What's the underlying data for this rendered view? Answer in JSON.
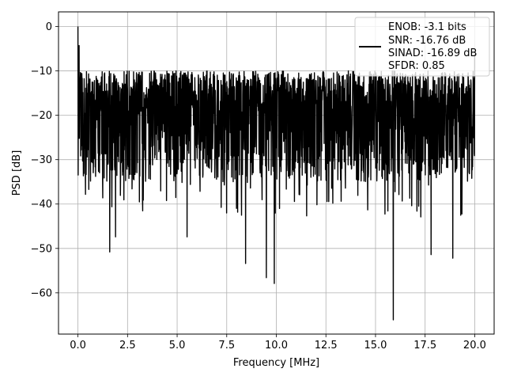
{
  "chart_data": {
    "type": "line",
    "title": "",
    "xlabel": "Frequency [MHz]",
    "ylabel": "PSD [dB]",
    "xlim": [
      -0.98,
      20.98
    ],
    "ylim": [
      -69.3,
      3.3
    ],
    "grid": true,
    "x_ticks": [
      0.0,
      2.5,
      5.0,
      7.5,
      10.0,
      12.5,
      15.0,
      17.5,
      20.0
    ],
    "x_tick_labels": [
      "0.0",
      "2.5",
      "5.0",
      "7.5",
      "10.0",
      "12.5",
      "15.0",
      "17.5",
      "20.0"
    ],
    "y_ticks": [
      0,
      -10,
      -20,
      -30,
      -40,
      -50,
      -60
    ],
    "y_tick_labels": [
      "0",
      "−10",
      "−20",
      "−30",
      "−40",
      "−50",
      "−60"
    ],
    "legend": {
      "placement": "upper-right",
      "entries": [
        "ENOB: -3.1 bits",
        "SNR: -16.76 dB",
        "SINAD: -16.89 dB",
        "SFDR: 0.85"
      ]
    },
    "series": [
      {
        "color": "#000000",
        "x_range": [
          0.0,
          20.0
        ],
        "n_points": 2048,
        "seed": 12345,
        "peaks": [
          {
            "x": 0.0,
            "y": 0.0
          },
          {
            "x": 0.06,
            "y": -4.3
          },
          {
            "x": 20.0,
            "y": -6.2
          }
        ],
        "dips": [
          {
            "x": 1.6,
            "y": -50.8
          },
          {
            "x": 1.9,
            "y": -47.4
          },
          {
            "x": 5.5,
            "y": -47.4
          },
          {
            "x": 8.45,
            "y": -53.4
          },
          {
            "x": 9.5,
            "y": -56.6
          },
          {
            "x": 9.9,
            "y": -57.9
          },
          {
            "x": 15.9,
            "y": -66.1
          },
          {
            "x": 17.8,
            "y": -51.4
          },
          {
            "x": 18.9,
            "y": -52.2
          }
        ],
        "floor_max": -10.0,
        "floor_min": -35.0
      }
    ]
  }
}
